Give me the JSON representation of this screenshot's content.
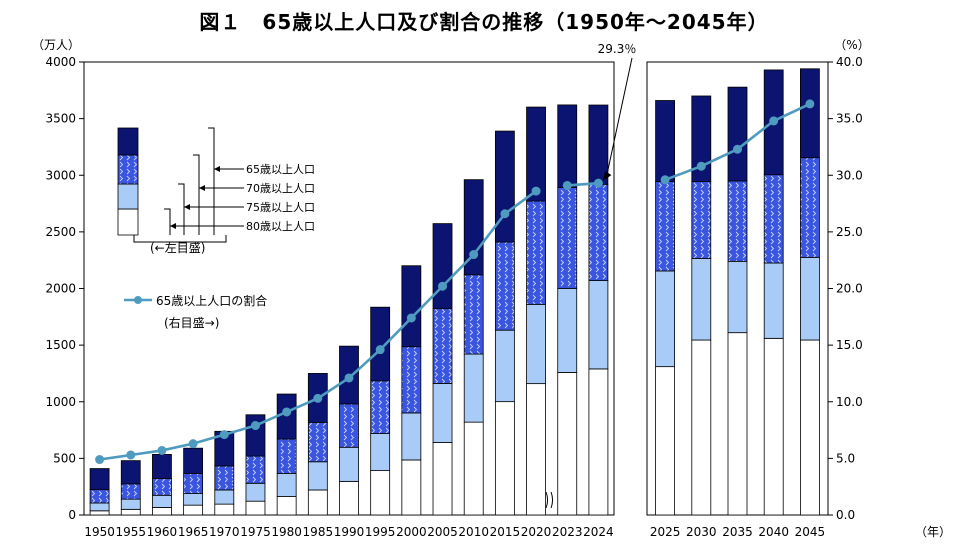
{
  "title": "図１　65歳以上人口及び割合の推移（1950年～2045年）",
  "chart_data": {
    "type": "bar",
    "stacked": true,
    "categories": [
      "1950",
      "1955",
      "1960",
      "1965",
      "1970",
      "1975",
      "1980",
      "1985",
      "1990",
      "1995",
      "2000",
      "2005",
      "2010",
      "2015",
      "2020",
      "2023",
      "2024",
      "2025",
      "2030",
      "2035",
      "2040",
      "2045"
    ],
    "panel_break_after": "2024",
    "series": [
      {
        "name": "80歳以上人口",
        "fill": "white",
        "values": [
          37,
          50,
          67,
          87,
          96,
          122,
          163,
          221,
          297,
          392,
          486,
          640,
          820,
          1001,
          1160,
          1259,
          1290,
          1310,
          1545,
          1610,
          1560,
          1545
        ]
      },
      {
        "name": "75歳以上人口",
        "fill": "light-blue",
        "values": [
          69,
          90,
          107,
          102,
          125,
          158,
          203,
          249,
          301,
          327,
          415,
          522,
          601,
          631,
          700,
          742,
          780,
          845,
          720,
          630,
          665,
          730
        ]
      },
      {
        "name": "70歳以上人口",
        "fill": "blue-pattern",
        "values": [
          118,
          135,
          148,
          178,
          212,
          240,
          305,
          348,
          383,
          466,
          585,
          660,
          700,
          778,
          912,
          890,
          850,
          790,
          680,
          710,
          780,
          880
        ]
      },
      {
        "name": "65歳以上人口",
        "fill": "navy",
        "values": [
          186,
          205,
          213,
          223,
          306,
          365,
          397,
          432,
          510,
          650,
          715,
          751,
          840,
          980,
          830,
          730,
          700,
          715,
          755,
          828,
          925,
          785
        ]
      }
    ],
    "totals": [
      410,
      480,
      535,
      590,
      739,
      885,
      1068,
      1250,
      1491,
      1835,
      2201,
      2573,
      2961,
      3390,
      3602,
      3621,
      3620,
      3660,
      3700,
      3778,
      3930,
      3940
    ],
    "line_series": {
      "name": "65歳以上人口の割合",
      "axis": "right",
      "values": [
        4.9,
        5.3,
        5.7,
        6.3,
        7.1,
        7.9,
        9.1,
        10.3,
        12.1,
        14.6,
        17.4,
        20.2,
        23.0,
        26.6,
        28.6,
        29.1,
        29.3,
        29.6,
        30.8,
        32.3,
        34.8,
        36.3
      ]
    },
    "left_axis": {
      "unit": "（万人）",
      "ticks": [
        0,
        500,
        1000,
        1500,
        2000,
        2500,
        3000,
        3500,
        4000
      ],
      "ylim": [
        0,
        4000
      ]
    },
    "right_axis": {
      "unit": "（%）",
      "ticks": [
        "0.0",
        "5.0",
        "10.0",
        "15.0",
        "20.0",
        "25.0",
        "30.0",
        "35.0",
        "40.0"
      ],
      "ylim": [
        0,
        40
      ]
    },
    "x_unit": "（年）",
    "annotation": "29.3％",
    "legend": {
      "bar_labels": [
        "65歳以上人口",
        "70歳以上人口",
        "75歳以上人口",
        "80歳以上人口"
      ],
      "bar_axis_note": "(←左目盛)",
      "line_label": "65歳以上人口の割合",
      "line_axis_note": "(右目盛→)"
    }
  }
}
